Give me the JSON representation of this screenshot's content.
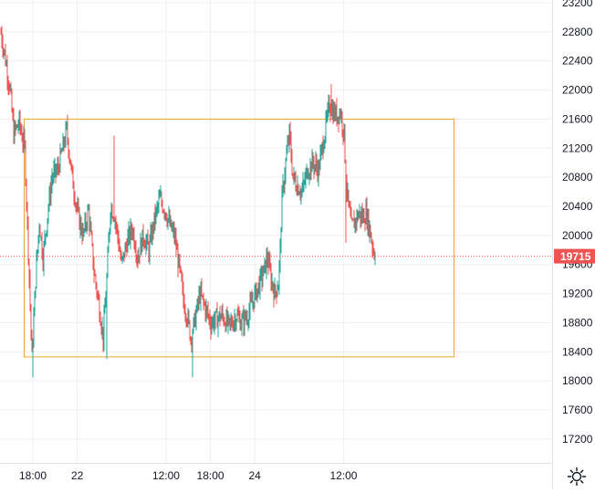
{
  "chart_data": {
    "type": "candlestick",
    "title": "",
    "xlabel": "",
    "ylabel": "",
    "ylim": [
      16800,
      23200
    ],
    "y_ticks": [
      17200,
      17600,
      18000,
      18400,
      18800,
      19200,
      19600,
      20000,
      20400,
      20800,
      21200,
      21600,
      22000,
      22400,
      22800,
      23200
    ],
    "x_ticks": [
      {
        "label": "18:00",
        "time": "21 18:00"
      },
      {
        "label": "22",
        "time": "22 00:00"
      },
      {
        "label": "12:00",
        "time": "22 12:00"
      },
      {
        "label": "18:00",
        "time": "22 18:00"
      },
      {
        "label": "24",
        "time": "24 00:00"
      },
      {
        "label": "12:00",
        "time": "24 12:00"
      }
    ],
    "current_price": 19715,
    "current_price_label": "19715",
    "up_color": "#26a69a",
    "down_color": "#ef5350",
    "rectangle": {
      "price_high": 21600,
      "price_low": 18330,
      "color": "#e6a72a"
    },
    "waypoints": [
      [
        0,
        22780
      ],
      [
        4,
        22500
      ],
      [
        10,
        22000
      ],
      [
        14,
        21400
      ],
      [
        20,
        21550
      ],
      [
        26,
        21200
      ],
      [
        30,
        19800
      ],
      [
        34,
        18300
      ],
      [
        38,
        19400
      ],
      [
        42,
        20200
      ],
      [
        46,
        19700
      ],
      [
        52,
        20400
      ],
      [
        56,
        20800
      ],
      [
        62,
        20900
      ],
      [
        66,
        21100
      ],
      [
        72,
        21450
      ],
      [
        78,
        20800
      ],
      [
        84,
        20300
      ],
      [
        90,
        20000
      ],
      [
        96,
        20350
      ],
      [
        102,
        19500
      ],
      [
        108,
        19000
      ],
      [
        112,
        18600
      ],
      [
        116,
        19400
      ],
      [
        120,
        20400
      ],
      [
        124,
        20300
      ],
      [
        128,
        20000
      ],
      [
        132,
        19600
      ],
      [
        138,
        19900
      ],
      [
        144,
        20100
      ],
      [
        150,
        19700
      ],
      [
        156,
        20000
      ],
      [
        162,
        19800
      ],
      [
        168,
        20200
      ],
      [
        174,
        20500
      ],
      [
        180,
        20350
      ],
      [
        186,
        20100
      ],
      [
        190,
        20000
      ],
      [
        196,
        19500
      ],
      [
        200,
        19100
      ],
      [
        204,
        18900
      ],
      [
        208,
        18600
      ],
      [
        212,
        18800
      ],
      [
        218,
        19200
      ],
      [
        224,
        19000
      ],
      [
        230,
        18800
      ],
      [
        236,
        18850
      ],
      [
        242,
        18900
      ],
      [
        250,
        18750
      ],
      [
        258,
        18900
      ],
      [
        264,
        18800
      ],
      [
        270,
        18900
      ],
      [
        276,
        19100
      ],
      [
        282,
        19300
      ],
      [
        288,
        19500
      ],
      [
        292,
        19700
      ],
      [
        296,
        19400
      ],
      [
        300,
        19200
      ],
      [
        304,
        19350
      ],
      [
        306,
        19800
      ],
      [
        308,
        20500
      ],
      [
        312,
        21000
      ],
      [
        316,
        21400
      ],
      [
        320,
        20800
      ],
      [
        324,
        20700
      ],
      [
        330,
        20600
      ],
      [
        336,
        20900
      ],
      [
        342,
        21000
      ],
      [
        348,
        20900
      ],
      [
        352,
        21200
      ],
      [
        356,
        21500
      ],
      [
        360,
        21800
      ],
      [
        364,
        21700
      ],
      [
        368,
        21650
      ],
      [
        372,
        21700
      ],
      [
        376,
        21400
      ],
      [
        378,
        20800
      ],
      [
        380,
        20500
      ],
      [
        384,
        20100
      ],
      [
        388,
        20200
      ],
      [
        392,
        20300
      ],
      [
        396,
        20250
      ],
      [
        400,
        20300
      ],
      [
        404,
        20100
      ],
      [
        408,
        19800
      ],
      [
        410,
        19715
      ]
    ],
    "extremes": [
      [
        1,
        22880
      ],
      [
        35,
        18050
      ],
      [
        116,
        18300
      ],
      [
        124,
        21370
      ],
      [
        210,
        18050
      ],
      [
        362,
        22080
      ],
      [
        378,
        19900
      ]
    ]
  }
}
